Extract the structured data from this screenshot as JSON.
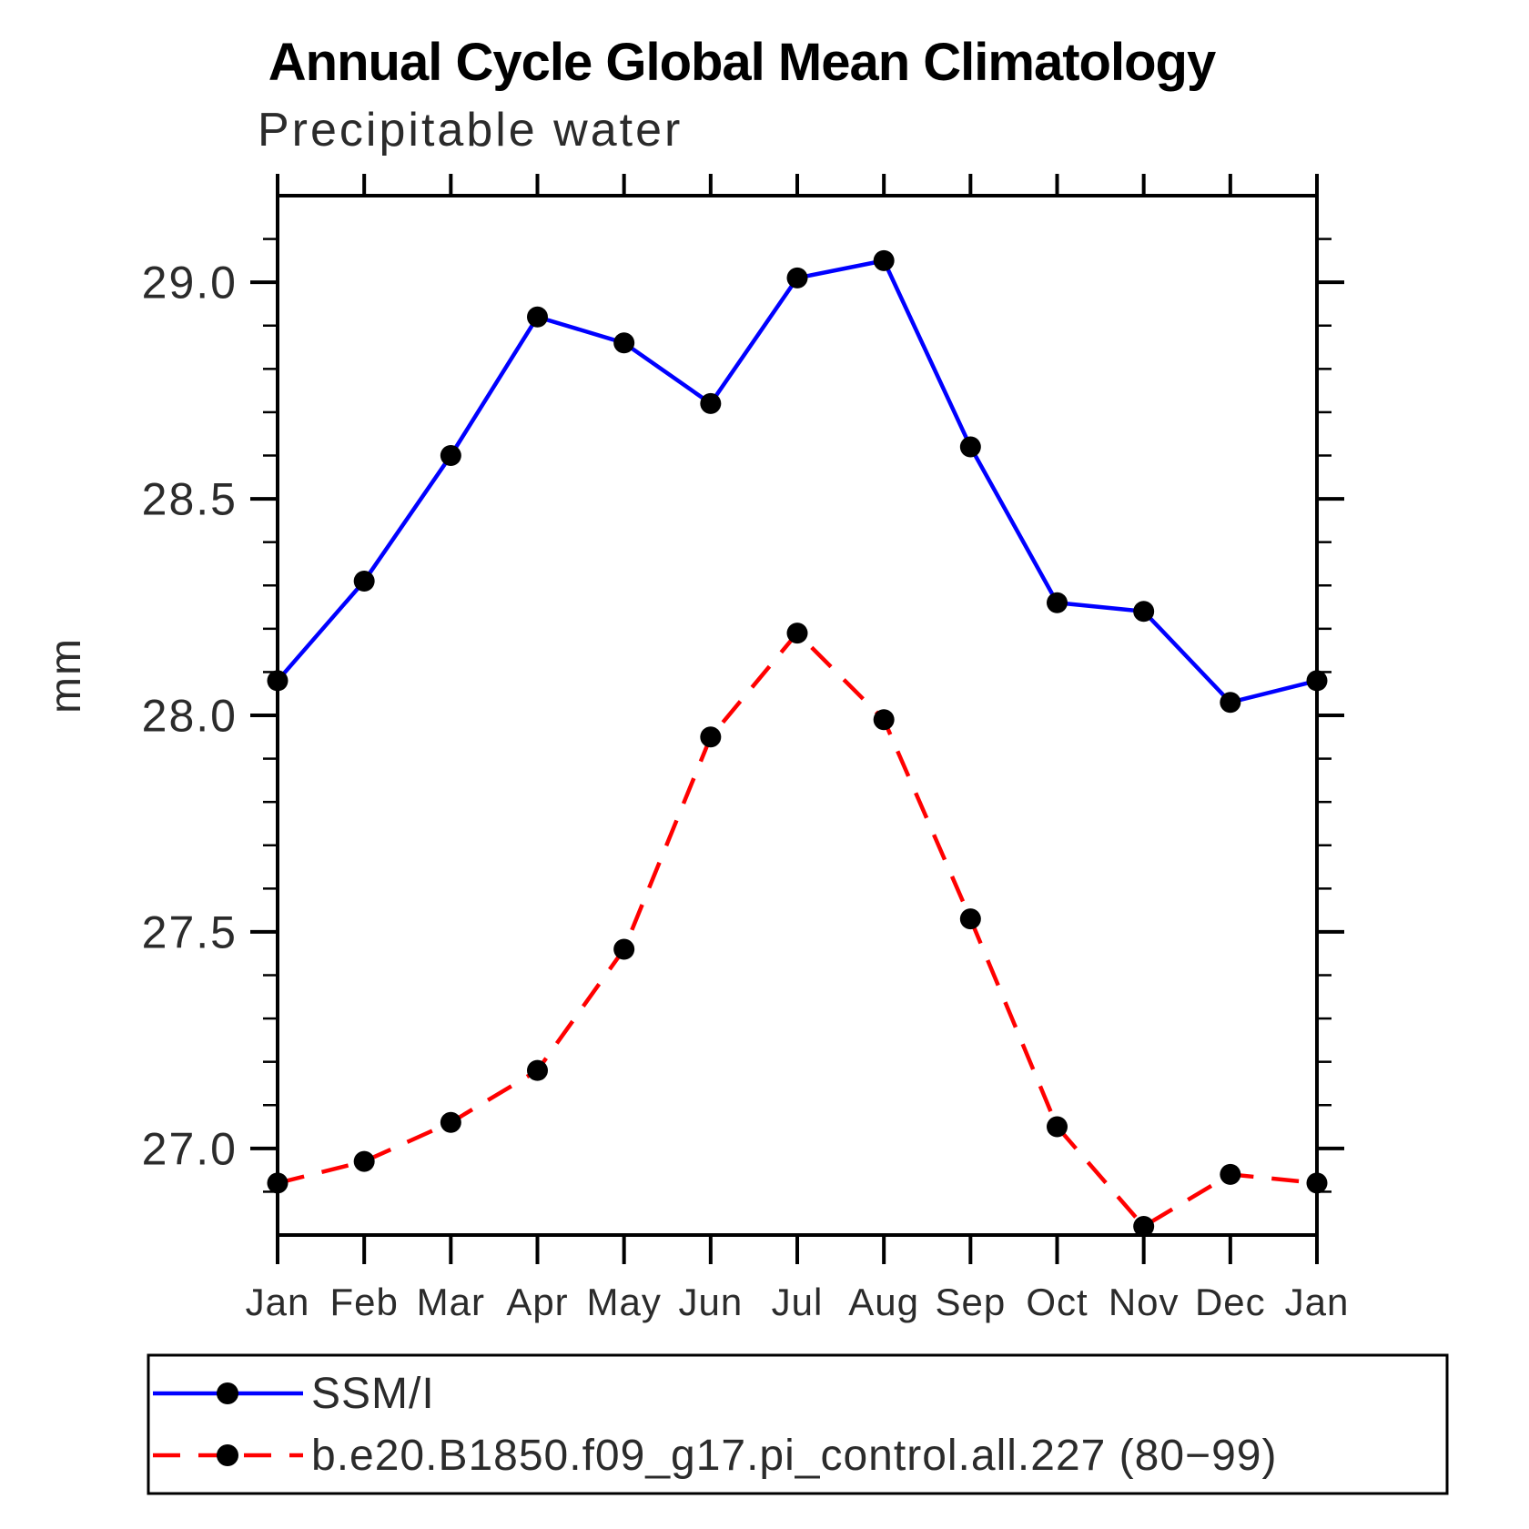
{
  "chart_data": {
    "type": "line",
    "title": "Annual Cycle Global Mean Climatology",
    "subtitle": "Precipitable water",
    "ylabel": "mm",
    "xlabel": "",
    "categories": [
      "Jan",
      "Feb",
      "Mar",
      "Apr",
      "May",
      "Jun",
      "Jul",
      "Aug",
      "Sep",
      "Oct",
      "Nov",
      "Dec",
      "Jan"
    ],
    "ylim": [
      26.8,
      29.2
    ],
    "y_major_ticks": [
      27.0,
      27.5,
      28.0,
      28.5,
      29.0
    ],
    "y_major_tick_labels": [
      "27.0",
      "27.5",
      "28.0",
      "28.5",
      "29.0"
    ],
    "y_minor_step": 0.1,
    "grid": false,
    "legend_position": "bottom-left",
    "frame_color": "#000000",
    "series": [
      {
        "name": "SSM/I",
        "color": "#0000ff",
        "line_style": "solid",
        "marker": "circle",
        "marker_color": "#000000",
        "values": [
          28.08,
          28.31,
          28.6,
          28.92,
          28.86,
          28.72,
          29.01,
          29.05,
          28.62,
          28.26,
          28.24,
          28.03,
          28.08
        ]
      },
      {
        "name": "b.e20.B1850.f09_g17.pi_control.all.227 (80−99)",
        "color": "#ff0000",
        "line_style": "dashed",
        "marker": "circle",
        "marker_color": "#000000",
        "values": [
          26.92,
          26.97,
          27.06,
          27.18,
          27.46,
          27.95,
          28.19,
          27.99,
          27.53,
          27.05,
          26.82,
          26.94,
          26.92
        ]
      }
    ]
  }
}
